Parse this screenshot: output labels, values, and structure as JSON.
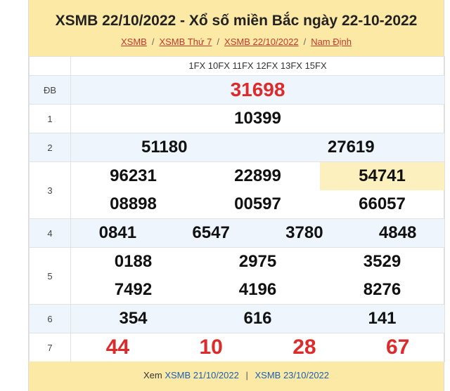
{
  "header": {
    "title": "XSMB 22/10/2022 - Xổ số miền Bắc ngày 22-10-2022",
    "breadcrumbs": [
      "XSMB",
      "XSMB Thứ 7",
      "XSMB 22/10/2022",
      "Nam Định"
    ],
    "separator": "/"
  },
  "codes": "1FX 10FX 11FX 12FX 13FX 15FX",
  "prizes": {
    "db": {
      "label": "ĐB",
      "numbers": [
        "31698"
      ]
    },
    "g1": {
      "label": "1",
      "numbers": [
        "10399"
      ]
    },
    "g2": {
      "label": "2",
      "numbers": [
        "51180",
        "27619"
      ]
    },
    "g3": {
      "label": "3",
      "numbers": [
        "96231",
        "22899",
        "54741",
        "08898",
        "00597",
        "66057"
      ]
    },
    "g4": {
      "label": "4",
      "numbers": [
        "0841",
        "6547",
        "3780",
        "4848"
      ]
    },
    "g5": {
      "label": "5",
      "numbers": [
        "0188",
        "2975",
        "3529",
        "7492",
        "4196",
        "8276"
      ]
    },
    "g6": {
      "label": "6",
      "numbers": [
        "354",
        "616",
        "141"
      ]
    },
    "g7": {
      "label": "7",
      "numbers": [
        "44",
        "10",
        "28",
        "67"
      ]
    }
  },
  "footer": {
    "prefix": "Xem",
    "prev_link": "XSMB 21/10/2022",
    "divider": "|",
    "next_link": "XSMB 23/10/2022"
  },
  "colors": {
    "header_bg": "#fde9a6",
    "alt_row_bg": "#eef5fd",
    "highlight": "#fdf0bf",
    "red": "#dd2a2a",
    "link": "#c0392b"
  }
}
